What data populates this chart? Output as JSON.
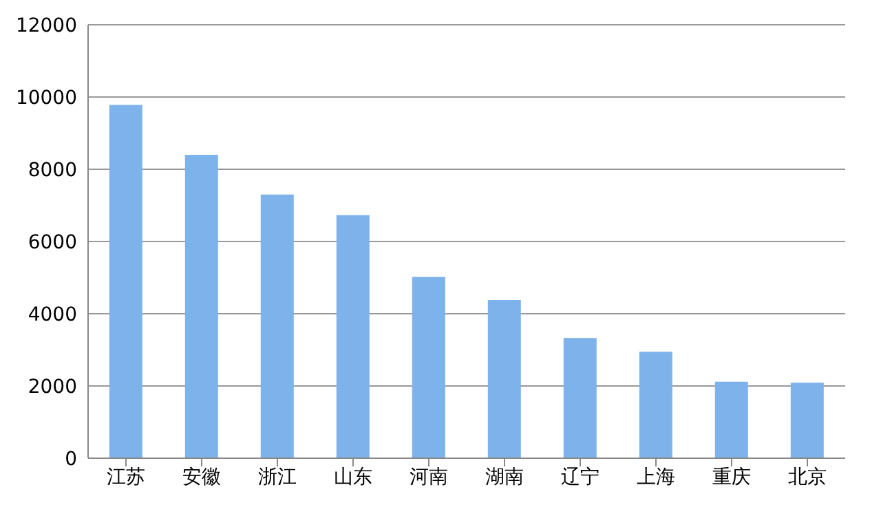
{
  "chart_data": {
    "type": "bar",
    "categories": [
      "江苏",
      "安徽",
      "浙江",
      "山东",
      "河南",
      "湖南",
      "辽宁",
      "上海",
      "重庆",
      "北京"
    ],
    "values": [
      9780,
      8400,
      7300,
      6730,
      5020,
      4380,
      3330,
      2950,
      2120,
      2090
    ],
    "color": "#7eb2ea",
    "ylim": [
      0,
      12000
    ],
    "yticks": [
      0,
      2000,
      4000,
      6000,
      8000,
      10000,
      12000
    ],
    "grid": "y"
  }
}
